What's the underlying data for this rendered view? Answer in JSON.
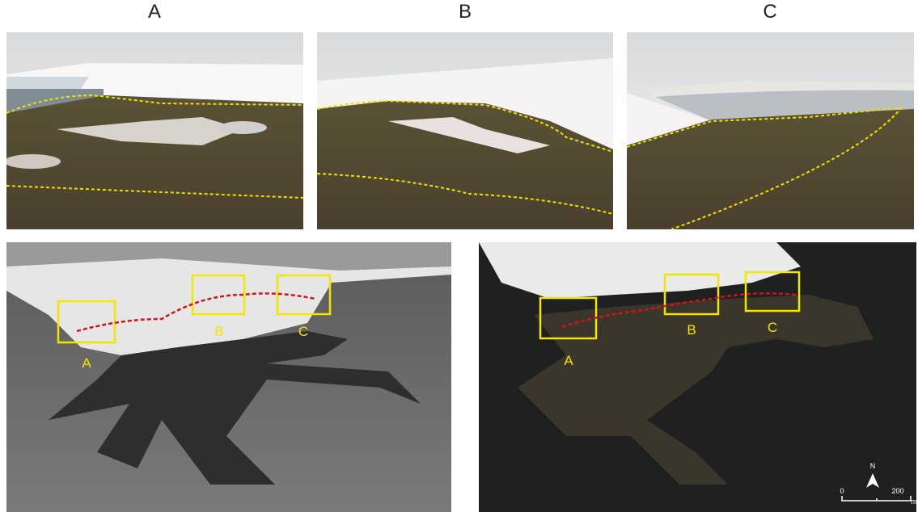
{
  "panels": [
    {
      "label": "A"
    },
    {
      "label": "B"
    },
    {
      "label": "C"
    }
  ],
  "aerial_photos": [
    {
      "box_labels": [
        "A",
        "B",
        "C"
      ]
    },
    {
      "box_labels": [
        "A",
        "B",
        "C"
      ]
    }
  ],
  "scale_bar": {
    "north": "N",
    "start": 0,
    "end": 200,
    "unit": "m"
  }
}
